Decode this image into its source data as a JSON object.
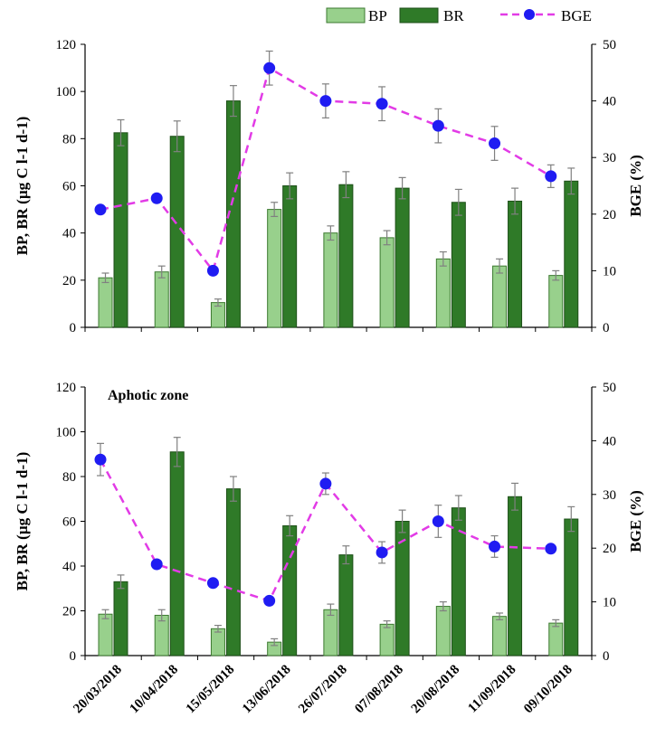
{
  "legend": {
    "bp": "BP",
    "br": "BR",
    "bge": "BGE"
  },
  "colors": {
    "bp_fill": "#98d08c",
    "bp_stroke": "#3c7a30",
    "br_fill": "#2f7a28",
    "br_stroke": "#1d4f18",
    "bge_line": "#e23be6",
    "bge_marker": "#1f1cf2",
    "error_bar": "#808080"
  },
  "chart_data": [
    {
      "type": "bar",
      "panel_label": "",
      "categories": [
        "20/03/2018",
        "10/04/2018",
        "15/05/2018",
        "13/06/2018",
        "26/07/2018",
        "07/08/2018",
        "20/08/2018",
        "11/09/2018",
        "09/10/2018"
      ],
      "ylabel": "BP, BR (µg C l-1 d-1)",
      "y2label": "BGE (%)",
      "ylim": [
        0,
        120
      ],
      "y2lim": [
        0,
        50
      ],
      "yticks": [
        "0",
        "20",
        "40",
        "60",
        "80",
        "100",
        "120"
      ],
      "y2ticks": [
        "0",
        "10",
        "20",
        "30",
        "40",
        "50"
      ],
      "series": [
        {
          "name": "BP",
          "axis": "left",
          "kind": "bar",
          "values": [
            21,
            23.5,
            10.5,
            50,
            40,
            38,
            29,
            26,
            22
          ],
          "errors": [
            2,
            2.5,
            1.5,
            3,
            3,
            3,
            3,
            3,
            2
          ]
        },
        {
          "name": "BR",
          "axis": "left",
          "kind": "bar",
          "values": [
            82.5,
            81,
            96,
            60,
            60.5,
            59,
            53,
            53.5,
            62
          ],
          "errors": [
            5.5,
            6.5,
            6.5,
            5.5,
            5.5,
            4.5,
            5.5,
            5.5,
            5.5
          ]
        },
        {
          "name": "BGE",
          "axis": "right",
          "kind": "line",
          "values": [
            20.8,
            22.8,
            10,
            45.8,
            40,
            39.5,
            35.6,
            32.5,
            26.7
          ],
          "errors": [
            0,
            0,
            0,
            3,
            3,
            3,
            3,
            3,
            2
          ]
        }
      ]
    },
    {
      "type": "bar",
      "panel_label": "Aphotic zone",
      "categories": [
        "20/03/2018",
        "10/04/2018",
        "15/05/2018",
        "13/06/2018",
        "26/07/2018",
        "07/08/2018",
        "20/08/2018",
        "11/09/2018",
        "09/10/2018"
      ],
      "ylabel": "BP, BR (µg C l-1 d-1)",
      "y2label": "BGE (%)",
      "ylim": [
        0,
        120
      ],
      "y2lim": [
        0,
        50
      ],
      "yticks": [
        "0",
        "20",
        "40",
        "60",
        "80",
        "100",
        "120"
      ],
      "y2ticks": [
        "0",
        "10",
        "20",
        "30",
        "40",
        "50"
      ],
      "series": [
        {
          "name": "BP",
          "axis": "left",
          "kind": "bar",
          "values": [
            18.5,
            18,
            12,
            6,
            20.5,
            14,
            22,
            17.5,
            14.5
          ],
          "errors": [
            2,
            2.5,
            1.5,
            1.5,
            2.5,
            1.5,
            2,
            1.5,
            1.5
          ]
        },
        {
          "name": "BR",
          "axis": "left",
          "kind": "bar",
          "values": [
            33,
            91,
            74.5,
            58,
            45,
            60,
            66,
            71,
            61
          ],
          "errors": [
            3,
            6.5,
            5.5,
            4.5,
            4,
            5,
            5.5,
            6,
            5.5
          ]
        },
        {
          "name": "BGE",
          "axis": "right",
          "kind": "line",
          "values": [
            36.5,
            17,
            13.5,
            10.2,
            32,
            19.2,
            25,
            20.3,
            19.9
          ],
          "errors": [
            3,
            0,
            0,
            0,
            2,
            2,
            3,
            2,
            0
          ]
        }
      ]
    }
  ]
}
